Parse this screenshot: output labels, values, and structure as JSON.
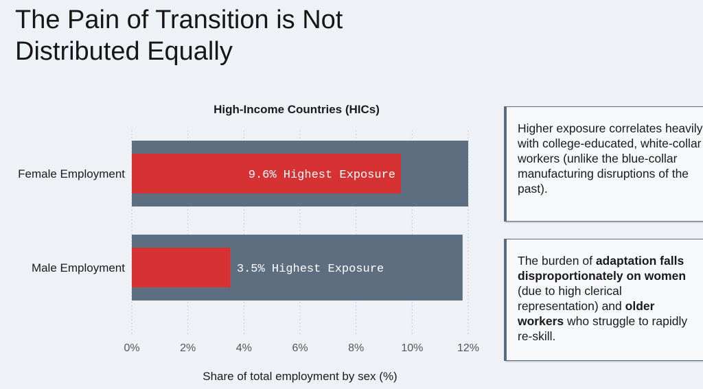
{
  "slide": {
    "title": "The Pain of Transition is Not Distributed Equally"
  },
  "chart_data": {
    "type": "bar",
    "orientation": "horizontal",
    "title": "High-Income Countries (HICs)",
    "xlabel": "Share of total employment by sex (%)",
    "ylabel": "",
    "xlim": [
      0,
      12
    ],
    "xticks": [
      "0%",
      "2%",
      "4%",
      "6%",
      "8%",
      "10%",
      "12%"
    ],
    "grid": "vertical-dotted",
    "categories": [
      "Female Employment",
      "Male Employment"
    ],
    "series": [
      {
        "values": [
          12.0,
          11.8
        ]
      },
      {
        "values": [
          9.6,
          3.5
        ]
      }
    ],
    "data_labels": [
      "9.6% Highest Exposure",
      "3.5% Highest Exposure"
    ],
    "colors": {
      "total": "#5d6e80",
      "highest": "#d63233"
    }
  },
  "notes": [
    {
      "segments": [
        {
          "text": "Higher exposure correlates heavily with college-educated, white-collar workers (unlike the blue-collar manufacturing disruptions of the past).",
          "bold": false
        }
      ]
    },
    {
      "segments": [
        {
          "text": "The burden of ",
          "bold": false
        },
        {
          "text": "adaptation falls disproportionately on women",
          "bold": true
        },
        {
          "text": " (due to high clerical representation) and ",
          "bold": false
        },
        {
          "text": "older workers",
          "bold": true
        },
        {
          "text": " who struggle to rapidly re-skill.",
          "bold": false
        }
      ]
    }
  ]
}
